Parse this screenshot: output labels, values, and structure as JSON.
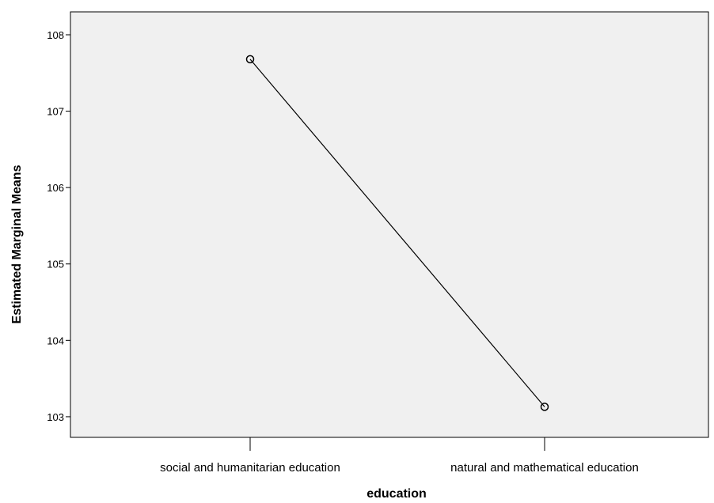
{
  "chart_data": {
    "type": "line",
    "title": "",
    "xlabel": "education",
    "ylabel": "Estimated Marginal Means",
    "categories": [
      "social and humanitarian education",
      "natural and mathematical education"
    ],
    "series": [
      {
        "values": [
          107.68,
          103.13
        ]
      }
    ],
    "ylim": [
      102.73,
      108.3
    ],
    "yticks": [
      "103",
      "104",
      "105",
      "106",
      "107",
      "108"
    ],
    "grid": false,
    "legend": "none",
    "marker": "open-circle"
  },
  "colors": {
    "plot_background": "#f0f0f0",
    "line": "#000000",
    "axes": "#000000"
  }
}
